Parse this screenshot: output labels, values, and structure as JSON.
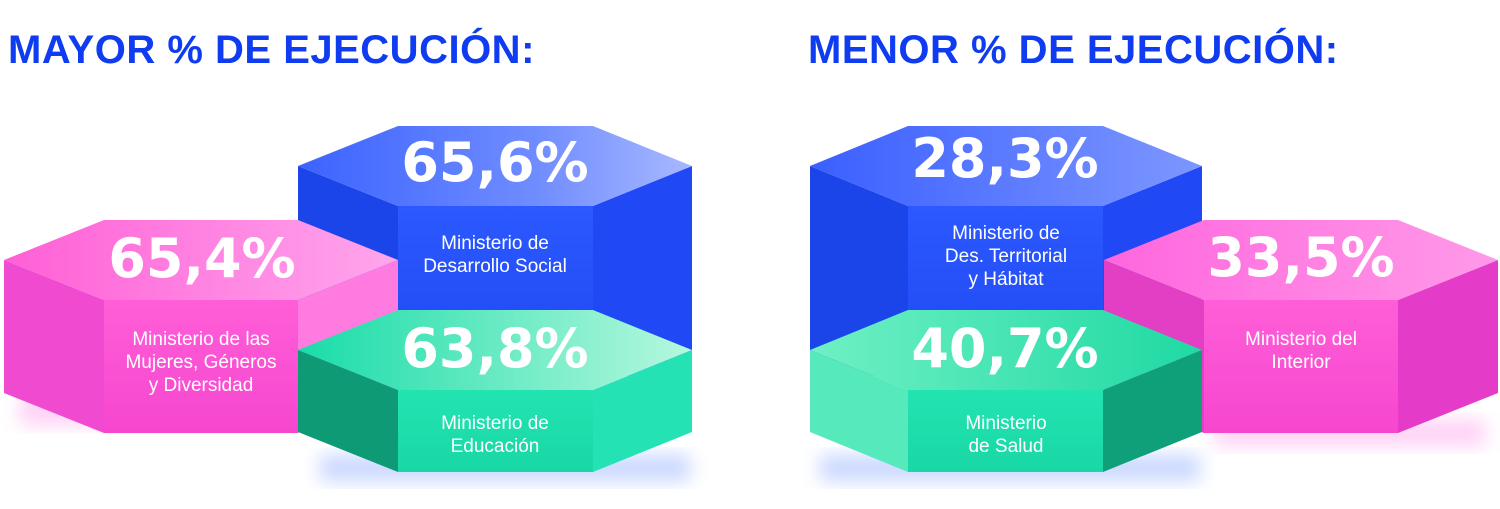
{
  "headings": {
    "left": "MAYOR % DE EJECUCIÓN:",
    "right": "MENOR % DE EJECUCIÓN:"
  },
  "colors": {
    "heading": "#0f3cf0",
    "blue": "#2f5cff",
    "pink": "#ff5ad8",
    "green": "#1ee8b0"
  },
  "mayor": {
    "desarrollo_social": {
      "percent": "65,6%",
      "label": "Ministerio de\nDesarrollo Social"
    },
    "mujeres": {
      "percent": "65,4%",
      "label": "Ministerio de las\nMujeres, Géneros\ny Diversidad"
    },
    "educacion": {
      "percent": "63,8%",
      "label": "Ministerio de\nEducación"
    }
  },
  "menor": {
    "territorial": {
      "percent": "28,3%",
      "label": "Ministerio de\nDes. Territorial\ny Hábitat"
    },
    "interior": {
      "percent": "33,5%",
      "label": "Ministerio del\nInterior"
    },
    "salud": {
      "percent": "40,7%",
      "label": "Ministerio\nde Salud"
    }
  }
}
